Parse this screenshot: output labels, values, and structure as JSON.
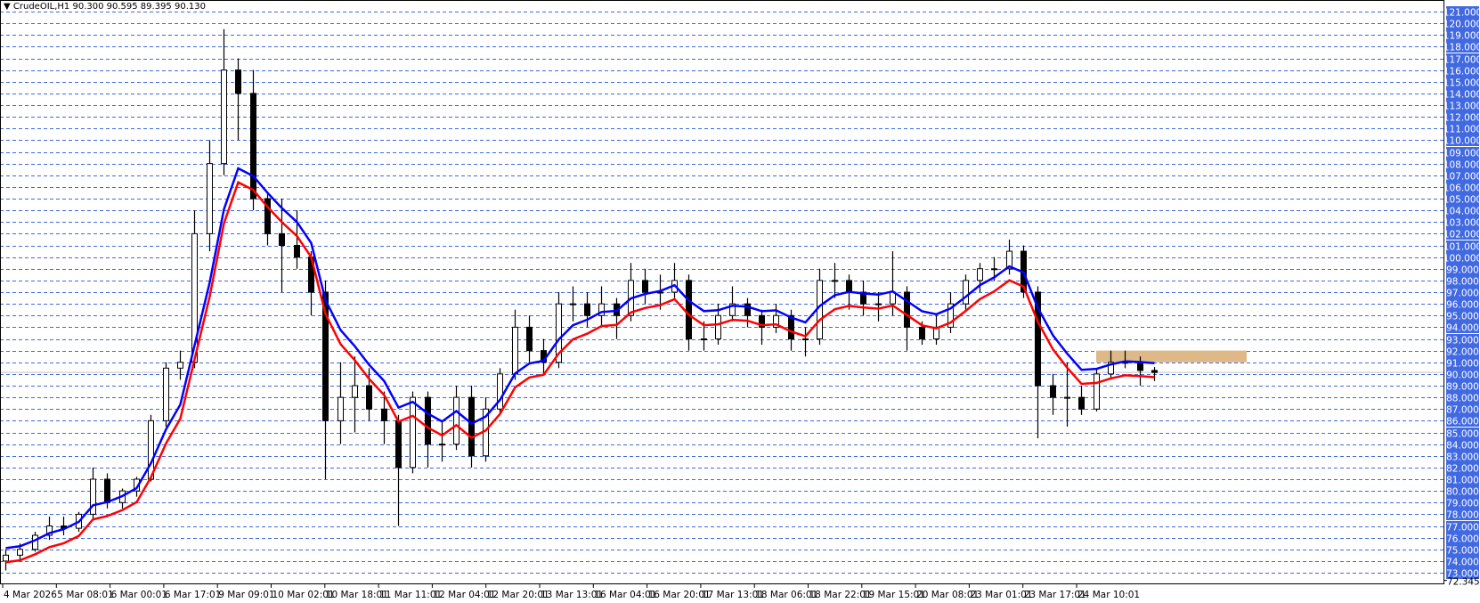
{
  "header": {
    "arrow_icon": "triangle-down-icon",
    "symbol": "CrudeOIL,H1",
    "ohlc": "90.300 90.595 89.395 90.130"
  },
  "colors": {
    "grid": "#4169e1",
    "price_label_bg": "#4169e1",
    "ma_fast": "#0000ff",
    "ma_slow": "#ff0000",
    "zone": "#deb887",
    "bid_line": "#c0c0c0",
    "candle": "#000000"
  },
  "chart_data": {
    "type": "candlestick",
    "symbol": "CrudeOIL",
    "timeframe": "H1",
    "ylim": [
      72.345,
      121.5
    ],
    "grid": true,
    "y_ticks": [
      121,
      120,
      119,
      118,
      117,
      116,
      115,
      114,
      113,
      112,
      111,
      110,
      109,
      108,
      107,
      106,
      105,
      104,
      103,
      102,
      101,
      100,
      99,
      98,
      97,
      96,
      95,
      94,
      93,
      92,
      91,
      90,
      89,
      88,
      87,
      86,
      85,
      84,
      83,
      82,
      81,
      80,
      79,
      78,
      77,
      76,
      75,
      74,
      73
    ],
    "y_tick_labels": [
      "121.000",
      "120.000",
      "119.000",
      "118.000",
      "117.000",
      "116.000",
      "115.000",
      "114.000",
      "113.000",
      "112.000",
      "111.000",
      "110.000",
      "109.000",
      "108.000",
      "107.000",
      "106.000",
      "105.000",
      "104.000",
      "103.000",
      "102.000",
      "101.000",
      "100.000",
      "99.000",
      "98.000",
      "97.000",
      "96.000",
      "95.000",
      "94.000",
      "93.000",
      "92.000",
      "91.000",
      "90.000",
      "89.000",
      "88.000",
      "87.000",
      "86.000",
      "85.000",
      "84.000",
      "83.000",
      "82.000",
      "81.000",
      "80.000",
      "79.000",
      "78.000",
      "77.000",
      "76.000",
      "75.000",
      "74.000",
      "73.000"
    ],
    "y_min_label": "72.345",
    "x_tick_labels": [
      "4 Mar 2026",
      "5 Mar 08:01",
      "6 Mar 00:01",
      "6 Mar 17:01",
      "9 Mar 09:01",
      "10 Mar 02:01",
      "10 Mar 18:01",
      "11 Mar 11:01",
      "12 Mar 04:01",
      "12 Mar 20:01",
      "13 Mar 13:01",
      "16 Mar 04:01",
      "16 Mar 20:01",
      "17 Mar 13:01",
      "18 Mar 06:01",
      "18 Mar 22:01",
      "19 Mar 15:01",
      "20 Mar 08:01",
      "23 Mar 01:01",
      "23 Mar 17:01",
      "24 Mar 10:01"
    ],
    "bid": 90.13,
    "zone": {
      "from_price": 91.0,
      "to_price": 92.0
    },
    "ohlc": [
      [
        74.0,
        75.0,
        73.2,
        74.5
      ],
      [
        74.5,
        75.5,
        74.0,
        75.0
      ],
      [
        75.0,
        76.5,
        74.8,
        76.2
      ],
      [
        76.2,
        77.8,
        75.8,
        77.0
      ],
      [
        77.0,
        77.8,
        76.2,
        76.8
      ],
      [
        76.8,
        78.2,
        76.5,
        78.0
      ],
      [
        78.0,
        82.0,
        77.5,
        81.0
      ],
      [
        81.0,
        81.5,
        78.5,
        79.0
      ],
      [
        79.0,
        80.2,
        78.5,
        80.0
      ],
      [
        80.0,
        81.2,
        79.5,
        81.0
      ],
      [
        81.0,
        86.5,
        80.8,
        86.0
      ],
      [
        86.0,
        91.0,
        85.5,
        90.5
      ],
      [
        90.5,
        92.0,
        89.5,
        91.0
      ],
      [
        91.0,
        104.0,
        90.5,
        102.0
      ],
      [
        102.0,
        110.0,
        100.5,
        108.0
      ],
      [
        108.0,
        119.5,
        107.0,
        116.0
      ],
      [
        116.0,
        117.0,
        110.0,
        114.0
      ],
      [
        114.0,
        116.0,
        104.0,
        105.0
      ],
      [
        105.0,
        105.5,
        101.0,
        102.0
      ],
      [
        102.0,
        105.0,
        97.0,
        101.0
      ],
      [
        101.0,
        104.0,
        99.0,
        100.0
      ],
      [
        100.0,
        100.5,
        95.0,
        97.0
      ],
      [
        97.0,
        98.0,
        81.0,
        86.0
      ],
      [
        86.0,
        91.0,
        84.0,
        88.0
      ],
      [
        88.0,
        91.5,
        85.0,
        89.0
      ],
      [
        89.0,
        90.5,
        86.0,
        87.0
      ],
      [
        87.0,
        88.5,
        84.0,
        86.0
      ],
      [
        86.0,
        86.5,
        77.0,
        82.0
      ],
      [
        82.0,
        88.5,
        81.5,
        88.0
      ],
      [
        88.0,
        88.5,
        82.0,
        84.0
      ],
      [
        84.0,
        86.0,
        82.5,
        84.0
      ],
      [
        84.0,
        89.0,
        83.5,
        88.0
      ],
      [
        88.0,
        89.0,
        82.0,
        83.0
      ],
      [
        83.0,
        88.0,
        82.5,
        87.0
      ],
      [
        87.0,
        90.5,
        86.5,
        90.0
      ],
      [
        90.0,
        95.5,
        89.5,
        94.0
      ],
      [
        94.0,
        95.0,
        91.0,
        92.0
      ],
      [
        92.0,
        93.0,
        90.0,
        91.0
      ],
      [
        91.0,
        97.0,
        90.5,
        96.0
      ],
      [
        96.0,
        97.5,
        94.5,
        96.0
      ],
      [
        96.0,
        97.0,
        94.0,
        95.0
      ],
      [
        95.0,
        97.5,
        94.0,
        96.0
      ],
      [
        96.0,
        96.5,
        93.0,
        95.0
      ],
      [
        95.0,
        99.5,
        94.5,
        98.0
      ],
      [
        98.0,
        99.0,
        96.0,
        97.0
      ],
      [
        97.0,
        98.5,
        95.5,
        97.0
      ],
      [
        97.0,
        99.5,
        96.5,
        98.0
      ],
      [
        98.0,
        98.5,
        92.0,
        93.0
      ],
      [
        93.0,
        94.5,
        92.0,
        93.0
      ],
      [
        93.0,
        96.0,
        92.5,
        95.0
      ],
      [
        95.0,
        97.5,
        94.5,
        96.0
      ],
      [
        96.0,
        96.5,
        94.0,
        95.0
      ],
      [
        95.0,
        95.5,
        92.5,
        94.0
      ],
      [
        94.0,
        96.0,
        93.5,
        95.0
      ],
      [
        95.0,
        95.5,
        92.0,
        93.0
      ],
      [
        93.0,
        94.0,
        91.5,
        93.0
      ],
      [
        93.0,
        99.0,
        92.5,
        98.0
      ],
      [
        98.0,
        99.5,
        96.5,
        98.0
      ],
      [
        98.0,
        98.5,
        95.5,
        97.0
      ],
      [
        97.0,
        98.0,
        95.0,
        96.0
      ],
      [
        96.0,
        97.0,
        94.5,
        96.0
      ],
      [
        96.0,
        100.5,
        95.0,
        97.0
      ],
      [
        97.0,
        97.5,
        92.0,
        94.0
      ],
      [
        94.0,
        94.5,
        92.5,
        93.0
      ],
      [
        93.0,
        95.0,
        92.5,
        94.0
      ],
      [
        94.0,
        97.0,
        93.5,
        96.0
      ],
      [
        96.0,
        98.5,
        95.5,
        98.0
      ],
      [
        98.0,
        99.5,
        97.0,
        99.0
      ],
      [
        99.0,
        100.0,
        98.0,
        99.0
      ],
      [
        99.0,
        101.5,
        98.5,
        100.5
      ],
      [
        100.5,
        101.0,
        96.5,
        97.0
      ],
      [
        97.0,
        97.5,
        84.5,
        89.0
      ],
      [
        89.0,
        90.0,
        86.5,
        88.0
      ],
      [
        88.0,
        91.0,
        85.5,
        88.0
      ],
      [
        88.0,
        89.0,
        86.5,
        87.0
      ],
      [
        87.0,
        90.5,
        86.8,
        90.0
      ],
      [
        90.0,
        92.0,
        89.5,
        91.0
      ],
      [
        91.0,
        92.0,
        90.5,
        91.0
      ],
      [
        91.0,
        91.5,
        89.0,
        90.3
      ],
      [
        90.3,
        90.595,
        89.395,
        90.13
      ]
    ]
  }
}
